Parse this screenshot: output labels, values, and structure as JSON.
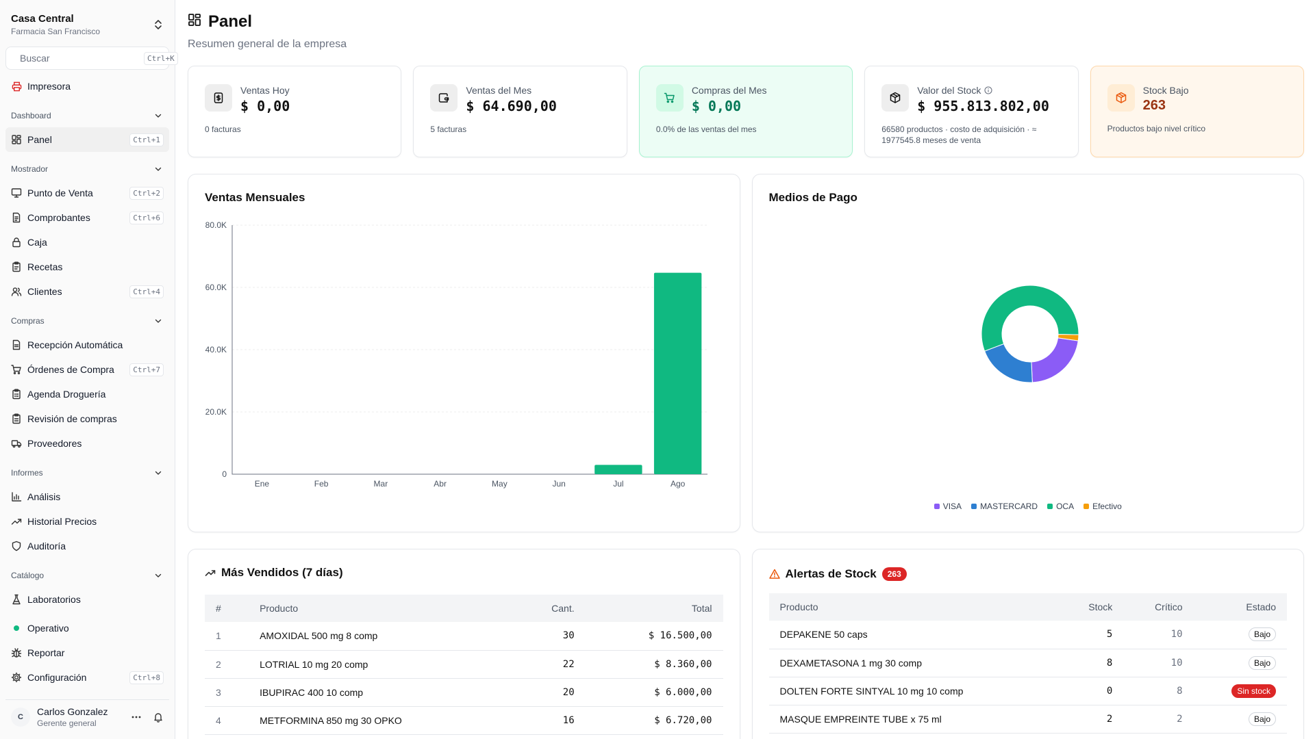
{
  "sidebar": {
    "store_name": "Casa Central",
    "store_sub": "Farmacia San Francisco",
    "search": {
      "placeholder": "Buscar",
      "shortcut": "Ctrl+K"
    },
    "printer": "Impresora",
    "sections": [
      {
        "label": "Dashboard",
        "items": [
          {
            "label": "Panel",
            "shortcut": "Ctrl+1",
            "icon": "grid-icon",
            "active": true
          }
        ]
      },
      {
        "label": "Mostrador",
        "items": [
          {
            "label": "Punto de Venta",
            "shortcut": "Ctrl+2",
            "icon": "monitor-icon"
          },
          {
            "label": "Comprobantes",
            "shortcut": "Ctrl+6",
            "icon": "receipt-icon"
          },
          {
            "label": "Caja",
            "shortcut": "",
            "icon": "lock-icon"
          },
          {
            "label": "Recetas",
            "shortcut": "",
            "icon": "clipboard-icon"
          },
          {
            "label": "Clientes",
            "shortcut": "Ctrl+4",
            "icon": "users-icon"
          }
        ]
      },
      {
        "label": "Compras",
        "items": [
          {
            "label": "Recepción Automática",
            "shortcut": "",
            "icon": "file-scan-icon"
          },
          {
            "label": "Órdenes de Compra",
            "shortcut": "Ctrl+7",
            "icon": "cart-icon"
          },
          {
            "label": "Agenda Droguería",
            "shortcut": "",
            "icon": "calendar-clipboard-icon"
          },
          {
            "label": "Revisión de compras",
            "shortcut": "",
            "icon": "clipboard-check-icon"
          },
          {
            "label": "Proveedores",
            "shortcut": "",
            "icon": "truck-icon"
          }
        ]
      },
      {
        "label": "Informes",
        "items": [
          {
            "label": "Análisis",
            "shortcut": "",
            "icon": "bar-chart-icon"
          },
          {
            "label": "Historial Precios",
            "shortcut": "",
            "icon": "trending-up-icon"
          },
          {
            "label": "Auditoría",
            "shortcut": "",
            "icon": "shield-icon"
          }
        ]
      },
      {
        "label": "Catálogo",
        "items": [
          {
            "label": "Laboratorios",
            "shortcut": "",
            "icon": "flask-icon"
          }
        ]
      }
    ],
    "extra": [
      {
        "label": "Operativo",
        "shortcut": "",
        "icon": "status-dot-icon"
      },
      {
        "label": "Reportar",
        "shortcut": "",
        "icon": "bug-icon"
      },
      {
        "label": "Configuración",
        "shortcut": "Ctrl+8",
        "icon": "gear-icon"
      }
    ],
    "user": {
      "initial": "C",
      "name": "Carlos Gonzalez",
      "role": "Gerente general"
    }
  },
  "header": {
    "title": "Panel",
    "subtitle": "Resumen general de la empresa"
  },
  "kpis": [
    {
      "label": "Ventas Hoy",
      "value": "$ 0,00",
      "foot": "0 facturas",
      "icon": "dollar-doc-icon",
      "variant": ""
    },
    {
      "label": "Ventas del Mes",
      "value": "$ 64.690,00",
      "foot": "5 facturas",
      "icon": "wallet-icon",
      "variant": ""
    },
    {
      "label": "Compras del Mes",
      "value": "$ 0,00",
      "foot": "0.0% de las ventas del mes",
      "icon": "cart-icon",
      "variant": "green"
    },
    {
      "label": "Valor del Stock",
      "value": "$ 955.813.802,00",
      "foot": "66580 productos · costo de adquisición · ≈ 1977545.8 meses de venta",
      "icon": "package-icon",
      "variant": ""
    },
    {
      "label": "Stock Bajo",
      "value": "263",
      "foot": "Productos bajo nivel crítico",
      "icon": "box-icon",
      "variant": "orange"
    }
  ],
  "sales_chart_title": "Ventas Mensuales",
  "payments_chart_title": "Medios de Pago",
  "chart_data": [
    {
      "type": "bar",
      "title": "Ventas Mensuales",
      "categories": [
        "Ene",
        "Feb",
        "Mar",
        "Abr",
        "May",
        "Jun",
        "Jul",
        "Ago"
      ],
      "values": [
        0,
        0,
        0,
        0,
        0,
        0,
        3000,
        64690
      ],
      "ylim": [
        0,
        80000
      ],
      "yticks": [
        "0",
        "20.0K",
        "40.0K",
        "60.0K",
        "80.0K"
      ],
      "color": "#10b981",
      "grid": true
    },
    {
      "type": "pie",
      "title": "Medios de Pago",
      "labels": [
        "VISA",
        "MASTERCARD",
        "OCA",
        "Efectivo"
      ],
      "values": [
        22,
        20,
        56,
        2
      ],
      "colors": [
        "#8b5cf6",
        "#2e7fd1",
        "#10b981",
        "#f59e0b"
      ],
      "legend": "bottom"
    }
  ],
  "top_sellers": {
    "title": "Más Vendidos (7 días)",
    "headers": [
      "#",
      "Producto",
      "Cant.",
      "Total"
    ],
    "rows": [
      [
        "1",
        "AMOXIDAL 500 mg 8 comp",
        "30",
        "$ 16.500,00"
      ],
      [
        "2",
        "LOTRIAL 10 mg 20 comp",
        "22",
        "$ 8.360,00"
      ],
      [
        "3",
        "IBUPIRAC 400 10 comp",
        "20",
        "$ 6.000,00"
      ],
      [
        "4",
        "METFORMINA 850 mg 30 OPKO",
        "16",
        "$ 6.720,00"
      ]
    ]
  },
  "stock_alerts": {
    "title": "Alertas de Stock",
    "badge": "263",
    "headers": [
      "Producto",
      "Stock",
      "Crítico",
      "Estado"
    ],
    "rows": [
      [
        "DEPAKENE 50 caps",
        "5",
        "10",
        "Bajo"
      ],
      [
        "DEXAMETASONA 1 mg 30 comp",
        "8",
        "10",
        "Bajo"
      ],
      [
        "DOLTEN FORTE SINTYAL 10 mg 10 comp",
        "0",
        "8",
        "Sin stock"
      ],
      [
        "MASQUE EMPREINTE TUBE x 75 ml",
        "2",
        "2",
        "Bajo"
      ]
    ]
  }
}
